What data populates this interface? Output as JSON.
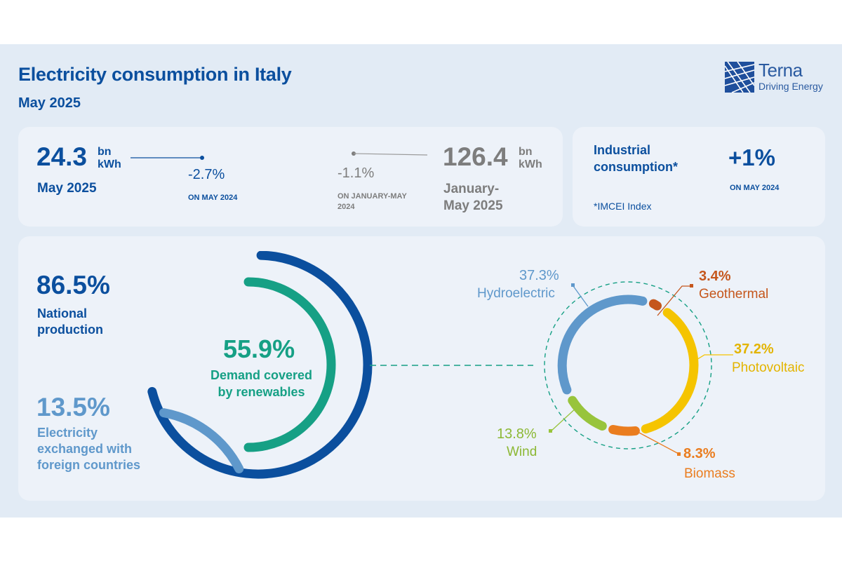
{
  "header": {
    "title": "Electricity consumption in Italy",
    "subtitle": "May 2025",
    "logo": {
      "name": "Terna",
      "tagline": "Driving Energy"
    }
  },
  "monthly": {
    "value": "24.3",
    "unit_line1": "bn",
    "unit_line2": "kWh",
    "period": "May 2025",
    "change": "-2.7%",
    "change_ref": "ON MAY 2024"
  },
  "ytd": {
    "change": "-1.1%",
    "change_ref_line1": "ON JANUARY-MAY",
    "change_ref_line2": "2024",
    "value": "126.4",
    "unit_line1": "bn",
    "unit_line2": "kWh",
    "period_line1": "January-",
    "period_line2": "May 2025"
  },
  "industrial": {
    "label_line1": "Industrial",
    "label_line2": "consumption*",
    "value": "+1%",
    "ref": "ON MAY 2024",
    "note": "*IMCEI Index"
  },
  "supply": {
    "national_pct": "86.5%",
    "national_label_line1": "National",
    "national_label_line2": "production",
    "foreign_pct": "13.5%",
    "foreign_label_line1": "Electricity",
    "foreign_label_line2": "exchanged with",
    "foreign_label_line3": "foreign countries",
    "renewables_pct": "55.9%",
    "renewables_label_line1": "Demand covered",
    "renewables_label_line2": "by renewables"
  },
  "mix": [
    {
      "name": "Hydroelectric",
      "pct": "37.3%",
      "color": "#5f98cb"
    },
    {
      "name": "Geothermal",
      "pct": "3.4%",
      "color": "#c5561c"
    },
    {
      "name": "Photovoltaic",
      "pct": "37.2%",
      "color": "#f5c400"
    },
    {
      "name": "Biomass",
      "pct": "8.3%",
      "color": "#ea7d1f"
    },
    {
      "name": "Wind",
      "pct": "13.8%",
      "color": "#98c43c"
    }
  ],
  "colors": {
    "primary_blue": "#0b4f9e",
    "light_blue": "#5f98cb",
    "renewables_green": "#16a085",
    "background": "#e2ebf5",
    "card": "#edf2f9"
  }
}
